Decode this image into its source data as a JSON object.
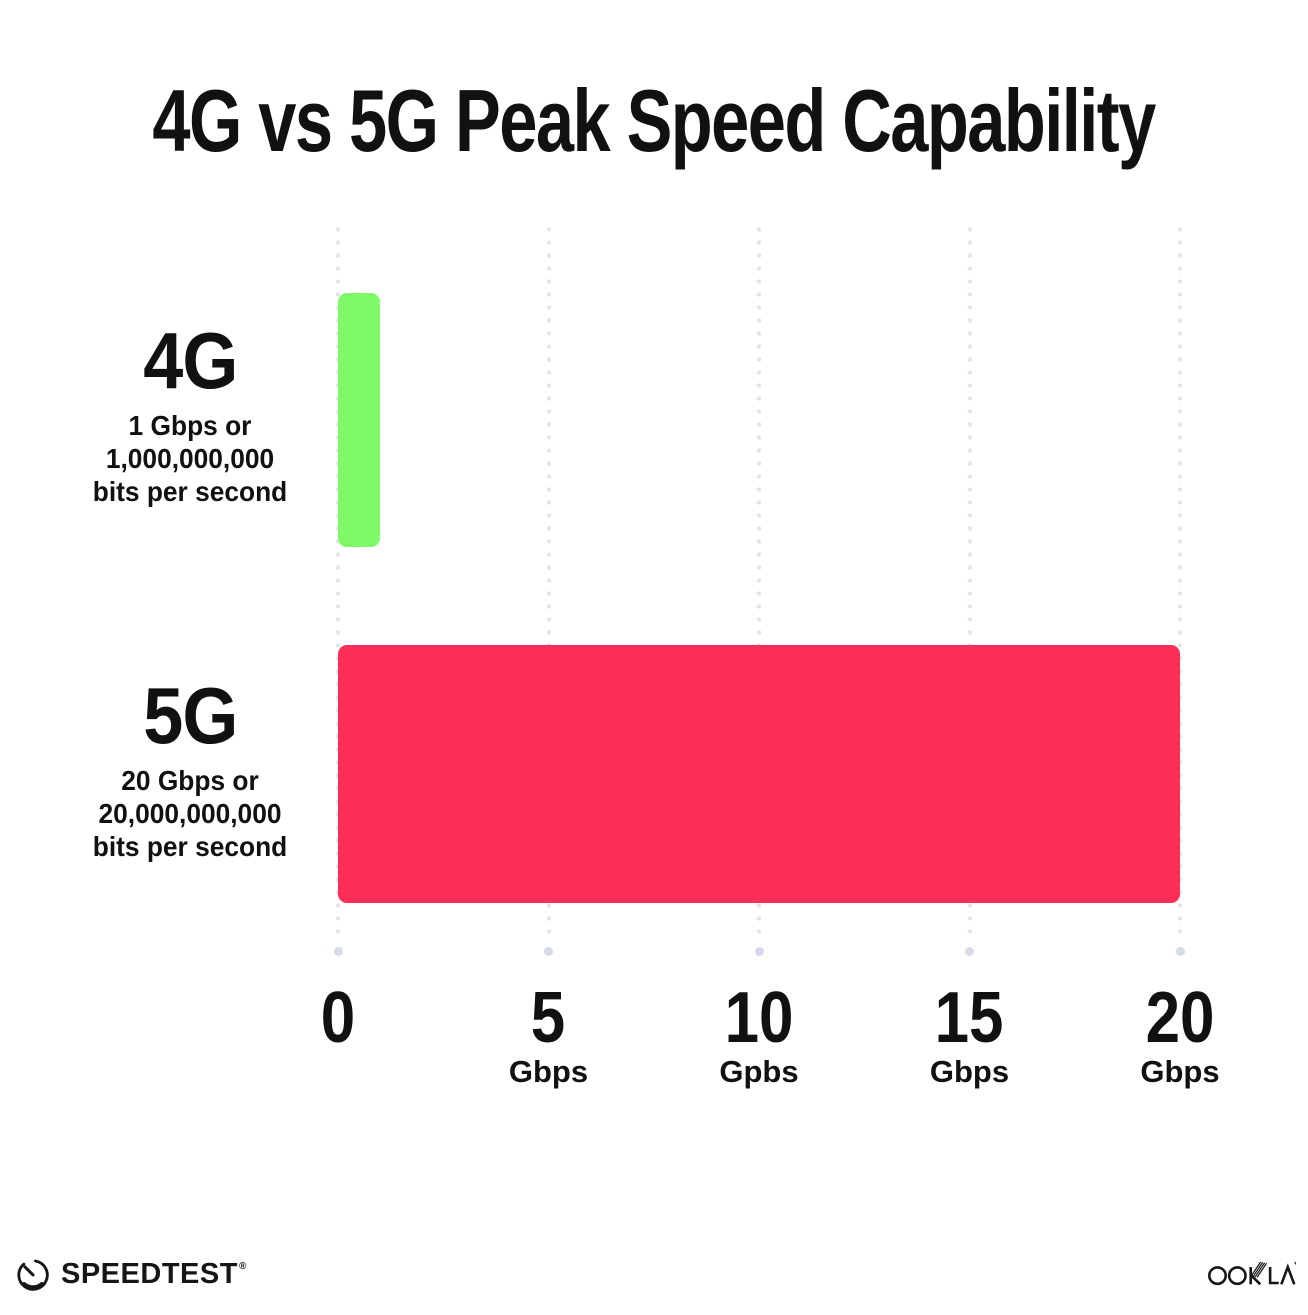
{
  "title": "4G vs 5G Peak Speed Capability",
  "colors": {
    "background": "#ffffff",
    "text": "#111111",
    "bar_4g": "#80f968",
    "bar_5g": "#fc2e58",
    "gridline": "#e1e3ef",
    "gridline_end_dot": "#d7dbe9"
  },
  "chart_data": {
    "type": "bar",
    "orientation": "horizontal",
    "title": "4G vs 5G Peak Speed Capability",
    "categories": [
      "4G",
      "5G"
    ],
    "values": [
      1,
      20
    ],
    "value_unit": "Gbps",
    "xlim": [
      0,
      20
    ],
    "grid": "vertical dotted gridlines at 0,5,10,15,20",
    "legend": "none",
    "x_ticks": [
      {
        "label": "0",
        "unit": ""
      },
      {
        "label": "5",
        "unit": "Gbps"
      },
      {
        "label": "10",
        "unit": "Gpbs"
      },
      {
        "label": "15",
        "unit": "Gbps"
      },
      {
        "label": "20",
        "unit": "Gbps"
      }
    ],
    "rows": [
      {
        "label": "4G",
        "sublabel_lines": [
          "1 Gbps or",
          "1,000,000,000",
          "bits per second"
        ],
        "value": 1,
        "color": "#80f968"
      },
      {
        "label": "5G",
        "sublabel_lines": [
          "20 Gbps or",
          "20,000,000,000",
          "bits per second"
        ],
        "value": 20,
        "color": "#fc2e58"
      }
    ]
  },
  "footer": {
    "speedtest_label": "SPEEDTEST",
    "speedtest_mark": "®",
    "ookla_label": "OOKLA",
    "speedtest_icon": "gauge-icon",
    "ookla_icon": "ookla-wordmark"
  }
}
